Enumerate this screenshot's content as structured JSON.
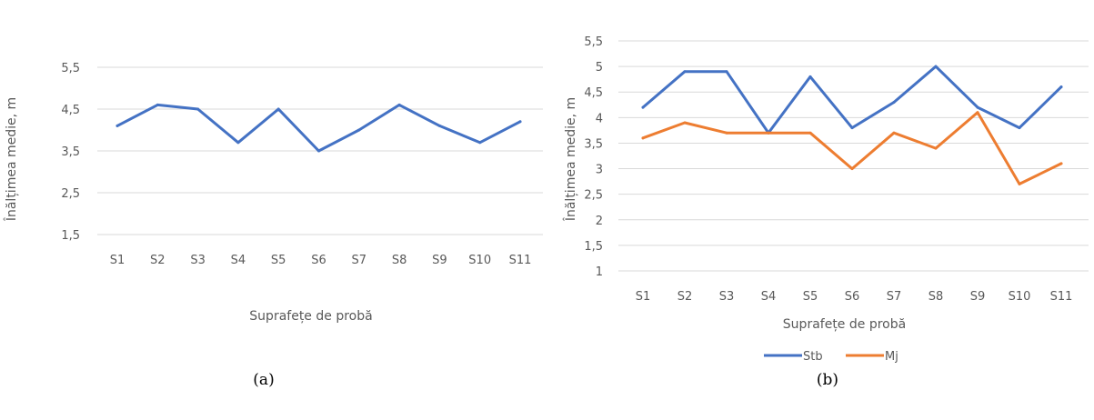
{
  "chart_data": [
    {
      "type": "line",
      "caption": "(a)",
      "xlabel": "Suprafețe de probă",
      "ylabel": "Înălțimea medie, m",
      "categories": [
        "S1",
        "S2",
        "S3",
        "S4",
        "S5",
        "S6",
        "S7",
        "S8",
        "S9",
        "S10",
        "S11"
      ],
      "yticks": [
        "1,5",
        "2,5",
        "3,5",
        "4,5",
        "5,5"
      ],
      "ylim": [
        1.5,
        5.5
      ],
      "grid": true,
      "legend": "none",
      "series": [
        {
          "color": "#4472c4",
          "values": [
            4.1,
            4.6,
            4.5,
            3.7,
            4.5,
            3.5,
            4.0,
            4.6,
            4.1,
            3.7,
            4.2
          ]
        }
      ]
    },
    {
      "type": "line",
      "caption": "(b)",
      "xlabel": "Suprafețe de probă",
      "ylabel": "Înălțimea  medie, m",
      "categories": [
        "S1",
        "S2",
        "S3",
        "S4",
        "S5",
        "S6",
        "S7",
        "S8",
        "S9",
        "S10",
        "S11"
      ],
      "yticks": [
        "1",
        "1,5",
        "2",
        "2,5",
        "3",
        "3,5",
        "4",
        "4,5",
        "5",
        "5,5"
      ],
      "ylim": [
        1,
        5.5
      ],
      "grid": true,
      "legend": "bottom",
      "series": [
        {
          "name": "Stb",
          "color": "#4472c4",
          "values": [
            4.2,
            4.9,
            4.9,
            3.7,
            4.8,
            3.8,
            4.3,
            5.0,
            4.2,
            3.8,
            4.6
          ]
        },
        {
          "name": "Mj",
          "color": "#ed7d31",
          "values": [
            3.6,
            3.9,
            3.7,
            3.7,
            3.7,
            3.0,
            3.7,
            3.4,
            4.1,
            2.7,
            3.1
          ]
        }
      ]
    }
  ]
}
